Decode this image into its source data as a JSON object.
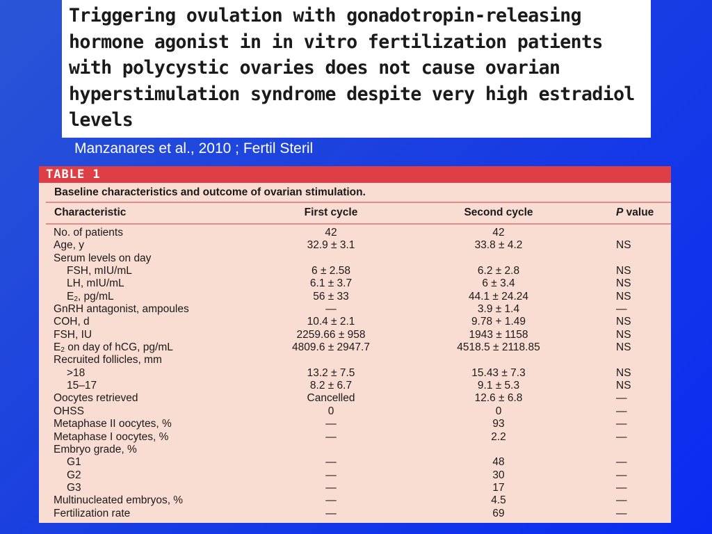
{
  "title": {
    "lines": [
      "Triggering ovulation with gonadotropin-releasing",
      "hormone agonist in in vitro fertilization patients",
      "with polycystic ovaries does not cause ovarian",
      "hyperstimulation syndrome despite very high estradiol",
      "levels"
    ]
  },
  "citation": "Manzanares et al., 2010 ; Fertil Steril",
  "table": {
    "label": "TABLE 1",
    "caption": "Baseline characteristics and outcome of ovarian stimulation.",
    "headers": {
      "characteristic": "Characteristic",
      "first": "First cycle",
      "second": "Second cycle",
      "p_italic": "P",
      "p_rest": " value"
    },
    "rows": [
      {
        "label": "No. of patients",
        "indent": false,
        "first": "42",
        "second": "42",
        "p": ""
      },
      {
        "label": "Age, y",
        "indent": false,
        "first": "32.9 ± 3.1",
        "second": "33.8 ± 4.2",
        "p": "NS"
      },
      {
        "label": "Serum levels on day",
        "indent": false,
        "first": "",
        "second": "",
        "p": ""
      },
      {
        "label": "FSH, mIU/mL",
        "indent": true,
        "first": "6 ± 2.58",
        "second": "6.2 ± 2.8",
        "p": "NS"
      },
      {
        "label": "LH, mIU/mL",
        "indent": true,
        "first": "6.1 ± 3.7",
        "second": "6 ± 3.4",
        "p": "NS"
      },
      {
        "label": "E",
        "sub": "2",
        "rest": ", pg/mL",
        "indent": true,
        "first": "56 ± 33",
        "second": "44.1 ± 24.24",
        "p": "NS"
      },
      {
        "label": "GnRH antagonist, ampoules",
        "indent": false,
        "first": "—",
        "second": "3.9 ± 1.4",
        "p": "—"
      },
      {
        "label": "COH, d",
        "indent": false,
        "first": "10.4 ± 2.1",
        "second": "9.78 + 1.49",
        "p": "NS"
      },
      {
        "label": "FSH, IU",
        "indent": false,
        "first": "2259.66 ± 958",
        "second": "1943 ± 1158",
        "p": "NS"
      },
      {
        "label": "E",
        "sub": "2",
        "rest": " on day of hCG, pg/mL",
        "indent": false,
        "first": "4809.6 ± 2947.7",
        "second": "4518.5 ± 2118.85",
        "p": "NS"
      },
      {
        "label": "Recruited follicles, mm",
        "indent": false,
        "first": "",
        "second": "",
        "p": ""
      },
      {
        "label": ">18",
        "indent": true,
        "first": "13.2 ± 7.5",
        "second": "15.43 ± 7.3",
        "p": "NS"
      },
      {
        "label": "15–17",
        "indent": true,
        "first": "8.2 ± 6.7",
        "second": "9.1 ± 5.3",
        "p": "NS"
      },
      {
        "label": "Oocytes retrieved",
        "indent": false,
        "first": "Cancelled",
        "second": "12.6 ± 6.8",
        "p": "—"
      },
      {
        "label": "OHSS",
        "indent": false,
        "first": "0",
        "second": "0",
        "p": "—"
      },
      {
        "label": "Metaphase II oocytes, %",
        "indent": false,
        "first": "—",
        "second": "93",
        "p": "—"
      },
      {
        "label": "Metaphase I oocytes, %",
        "indent": false,
        "first": "—",
        "second": "2.2",
        "p": "—"
      },
      {
        "label": "Embryo grade, %",
        "indent": false,
        "first": "",
        "second": "",
        "p": ""
      },
      {
        "label": "G1",
        "indent": true,
        "first": "—",
        "second": "48",
        "p": "—"
      },
      {
        "label": "G2",
        "indent": true,
        "first": "—",
        "second": "30",
        "p": "—"
      },
      {
        "label": "G3",
        "indent": true,
        "first": "—",
        "second": "17",
        "p": "—"
      },
      {
        "label": "Multinucleated embryos, %",
        "indent": false,
        "first": "—",
        "second": "4.5",
        "p": "—"
      },
      {
        "label": "Fertilization rate",
        "indent": false,
        "first": "—",
        "second": "69",
        "p": "—"
      }
    ]
  },
  "colors": {
    "background": "#1a3fe0",
    "table_bar": "#de3f46",
    "table_bg": "#f9dcd2",
    "rule": "#e08c8c"
  }
}
